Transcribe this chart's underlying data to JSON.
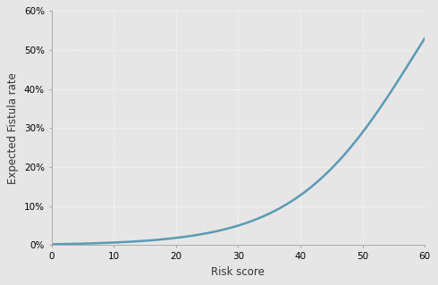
{
  "title": "",
  "xlabel": "Risk score",
  "ylabel": "Expected Fistula rate",
  "xlim": [
    0,
    60
  ],
  "ylim": [
    0,
    0.6
  ],
  "xticks": [
    0,
    10,
    20,
    30,
    40,
    50,
    60
  ],
  "yticks": [
    0.0,
    0.1,
    0.2,
    0.3,
    0.4,
    0.5,
    0.6
  ],
  "ytick_labels": [
    "0%",
    "10%",
    "20%",
    "30%",
    "40%",
    "50%",
    "60%"
  ],
  "line_color": "#5b9ab5",
  "line_width": 1.8,
  "background_color": "#e6e6e6",
  "grid_color": "#ffffff",
  "logistic_intercept": -6.0,
  "logistic_slope": 0.102
}
